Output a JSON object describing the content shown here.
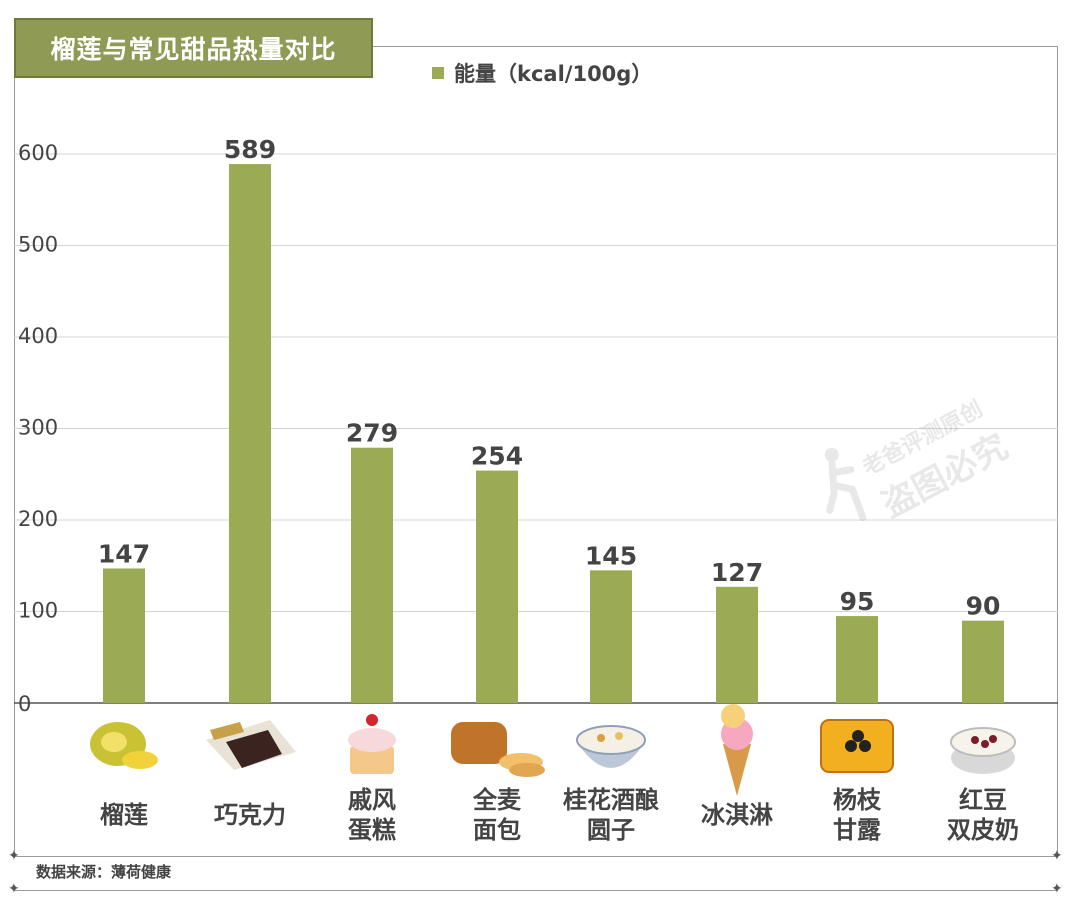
{
  "header": {
    "title": "榴莲与常见甜品热量对比"
  },
  "footer": {
    "source": "数据来源：薄荷健康"
  },
  "watermark": {
    "line1": "老爸评测原创",
    "line2": "盗图必究"
  },
  "chart_data": {
    "type": "bar",
    "title": "榴莲与常见甜品热量对比",
    "xlabel": "",
    "ylabel": "",
    "ylim": [
      0,
      600
    ],
    "yticks": [
      0,
      100,
      200,
      300,
      400,
      500,
      600
    ],
    "grid": true,
    "legend": {
      "position": "top-center",
      "entries": [
        "能量（kcal/100g）"
      ]
    },
    "categories": [
      [
        "榴莲"
      ],
      [
        "巧克力"
      ],
      [
        "戚风",
        "蛋糕"
      ],
      [
        "全麦",
        "面包"
      ],
      [
        "桂花酒酿",
        "圆子"
      ],
      [
        "冰淇淋"
      ],
      [
        "杨枝",
        "甘露"
      ],
      [
        "红豆",
        "双皮奶"
      ]
    ],
    "series": [
      {
        "name": "能量（kcal/100g）",
        "color": "#9aab54",
        "values": [
          147,
          589,
          279,
          254,
          145,
          127,
          95,
          90
        ]
      }
    ],
    "icons": [
      "durian-icon",
      "chocolate-icon",
      "cupcake-icon",
      "bread-icon",
      "dessert-bowl-icon",
      "ice-cream-icon",
      "mango-dessert-icon",
      "red-bean-pudding-icon"
    ]
  }
}
